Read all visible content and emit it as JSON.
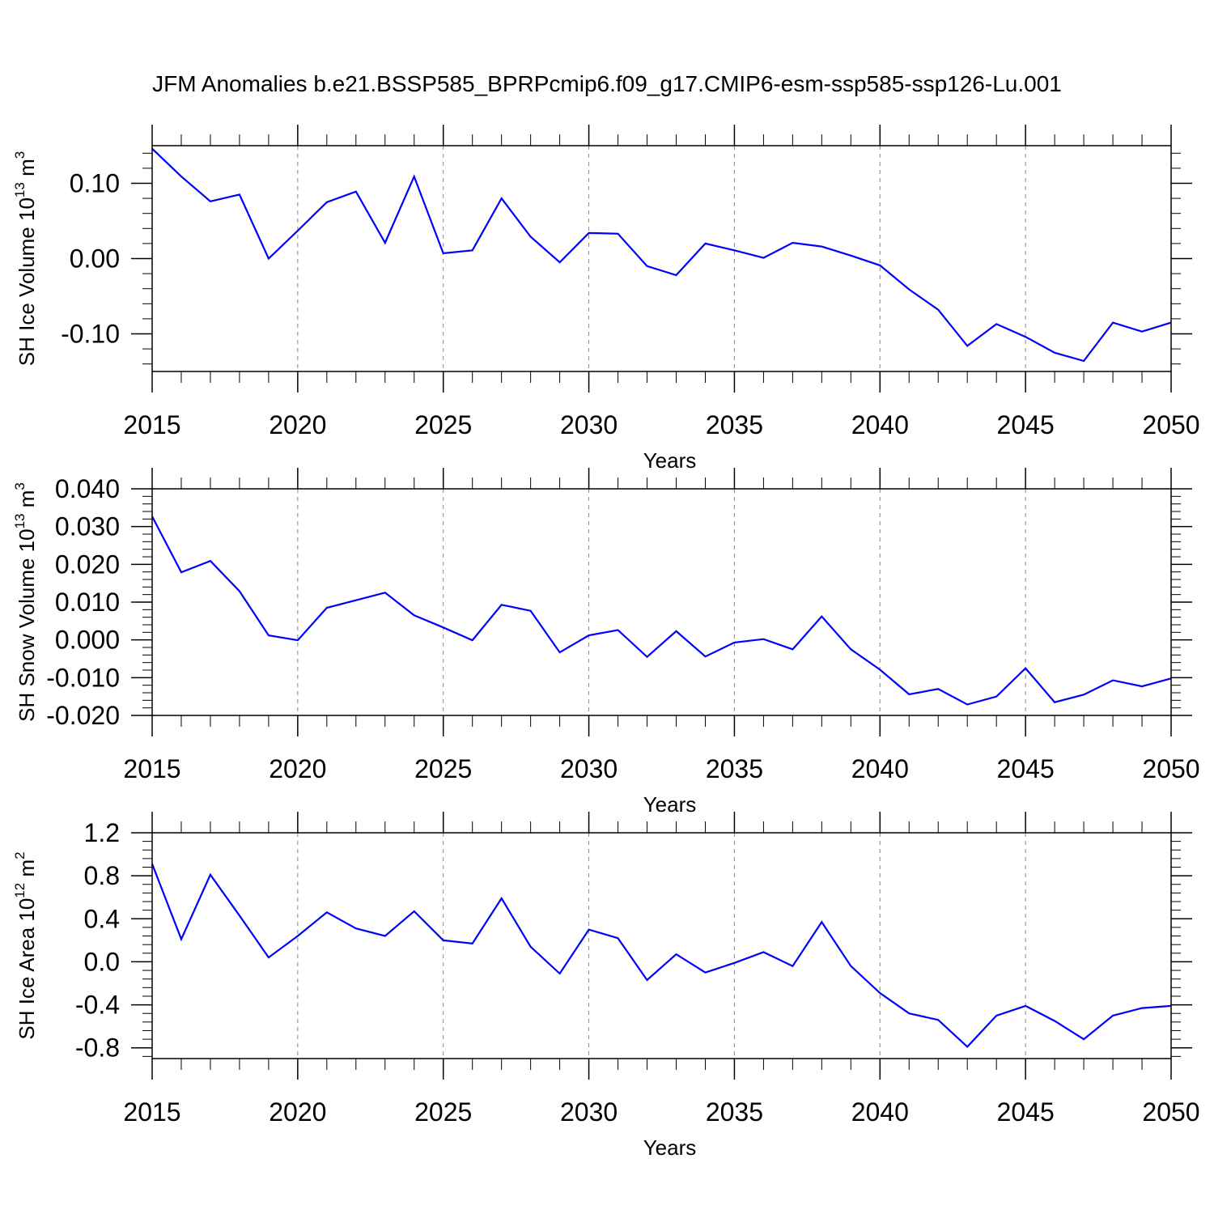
{
  "title": "JFM Anomalies b.e21.BSSP585_BPRPcmip6.f09_g17.CMIP6-esm-ssp585-ssp126-Lu.001",
  "line_color": "#0000ff",
  "chart_data": [
    {
      "type": "line",
      "name": "ice-volume",
      "ylabel": "SH Ice Volume 10",
      "ylabel_exp": "13",
      "ylabel_unit": " m",
      "ylabel_unit_exp": "3",
      "xlabel": "Years",
      "xlim": [
        2015,
        2050
      ],
      "ylim": [
        -0.15,
        0.15
      ],
      "yticks": [
        0.1,
        0.0,
        -0.1
      ],
      "ytick_labels": [
        "0.10",
        "0.00",
        "-0.10"
      ],
      "xticks": [
        2015,
        2020,
        2025,
        2030,
        2035,
        2040,
        2045,
        2050
      ],
      "xtick_labels": [
        "2015",
        "2020",
        "2025",
        "2030",
        "2035",
        "2040",
        "2045",
        "2050"
      ],
      "x": [
        2015,
        2016,
        2017,
        2018,
        2019,
        2020,
        2021,
        2022,
        2023,
        2024,
        2025,
        2026,
        2027,
        2028,
        2029,
        2030,
        2031,
        2032,
        2033,
        2034,
        2035,
        2036,
        2037,
        2038,
        2039,
        2040,
        2041,
        2042,
        2043,
        2044,
        2045,
        2046,
        2047,
        2048,
        2049,
        2050
      ],
      "values": [
        0.146,
        0.109,
        0.076,
        0.085,
        0.0,
        0.037,
        0.075,
        0.089,
        0.021,
        0.109,
        0.007,
        0.011,
        0.08,
        0.029,
        -0.005,
        0.034,
        0.033,
        -0.01,
        -0.022,
        0.02,
        0.011,
        0.001,
        0.021,
        0.016,
        0.004,
        -0.009,
        -0.041,
        -0.068,
        -0.116,
        -0.087,
        -0.104,
        -0.125,
        -0.136,
        -0.085,
        -0.097,
        -0.085
      ]
    },
    {
      "type": "line",
      "name": "snow-volume",
      "ylabel": "SH Snow Volume 10",
      "ylabel_exp": "13",
      "ylabel_unit": " m",
      "ylabel_unit_exp": "3",
      "xlabel": "Years",
      "xlim": [
        2015,
        2050
      ],
      "ylim": [
        -0.02,
        0.04
      ],
      "yticks": [
        0.04,
        0.03,
        0.02,
        0.01,
        0.0,
        -0.01,
        -0.02
      ],
      "ytick_labels": [
        "0.040",
        "0.030",
        "0.020",
        "0.010",
        "0.000",
        "-0.010",
        "-0.020"
      ],
      "xticks": [
        2015,
        2020,
        2025,
        2030,
        2035,
        2040,
        2045,
        2050
      ],
      "xtick_labels": [
        "2015",
        "2020",
        "2025",
        "2030",
        "2035",
        "2040",
        "2045",
        "2050"
      ],
      "x": [
        2015,
        2016,
        2017,
        2018,
        2019,
        2020,
        2021,
        2022,
        2023,
        2024,
        2025,
        2026,
        2027,
        2028,
        2029,
        2030,
        2031,
        2032,
        2033,
        2034,
        2035,
        2036,
        2037,
        2038,
        2039,
        2040,
        2041,
        2042,
        2043,
        2044,
        2045,
        2046,
        2047,
        2048,
        2049,
        2050
      ],
      "values": [
        0.0327,
        0.0179,
        0.0209,
        0.0129,
        0.0012,
        -0.0001,
        0.0085,
        0.0105,
        0.0125,
        0.0065,
        0.0033,
        -0.0001,
        0.0093,
        0.0077,
        -0.0033,
        0.0012,
        0.0026,
        -0.0045,
        0.0023,
        -0.0044,
        -0.0007,
        0.0002,
        -0.0025,
        0.0062,
        -0.0025,
        -0.0079,
        -0.0144,
        -0.013,
        -0.0171,
        -0.015,
        -0.0075,
        -0.0165,
        -0.0145,
        -0.0107,
        -0.0123,
        -0.0102
      ]
    },
    {
      "type": "line",
      "name": "ice-area",
      "ylabel": "SH Ice Area 10",
      "ylabel_exp": "12",
      "ylabel_unit": " m",
      "ylabel_unit_exp": "2",
      "xlabel": "Years",
      "xlim": [
        2015,
        2050
      ],
      "ylim": [
        -0.9,
        1.2
      ],
      "yticks": [
        1.2,
        0.8,
        0.4,
        0.0,
        -0.4,
        -0.8
      ],
      "ytick_labels": [
        "1.2",
        "0.8",
        "0.4",
        "0.0",
        "-0.4",
        "-0.8"
      ],
      "xticks": [
        2015,
        2020,
        2025,
        2030,
        2035,
        2040,
        2045,
        2050
      ],
      "xtick_labels": [
        "2015",
        "2020",
        "2025",
        "2030",
        "2035",
        "2040",
        "2045",
        "2050"
      ],
      "x": [
        2015,
        2016,
        2017,
        2018,
        2019,
        2020,
        2021,
        2022,
        2023,
        2024,
        2025,
        2026,
        2027,
        2028,
        2029,
        2030,
        2031,
        2032,
        2033,
        2034,
        2035,
        2036,
        2037,
        2038,
        2039,
        2040,
        2041,
        2042,
        2043,
        2044,
        2045,
        2046,
        2047,
        2048,
        2049,
        2050
      ],
      "values": [
        0.91,
        0.21,
        0.81,
        0.43,
        0.04,
        0.24,
        0.46,
        0.31,
        0.24,
        0.47,
        0.2,
        0.17,
        0.59,
        0.14,
        -0.11,
        0.3,
        0.22,
        -0.17,
        0.07,
        -0.1,
        -0.01,
        0.09,
        -0.04,
        0.37,
        -0.04,
        -0.29,
        -0.48,
        -0.54,
        -0.79,
        -0.5,
        -0.41,
        -0.55,
        -0.72,
        -0.5,
        -0.43,
        -0.41
      ]
    }
  ]
}
